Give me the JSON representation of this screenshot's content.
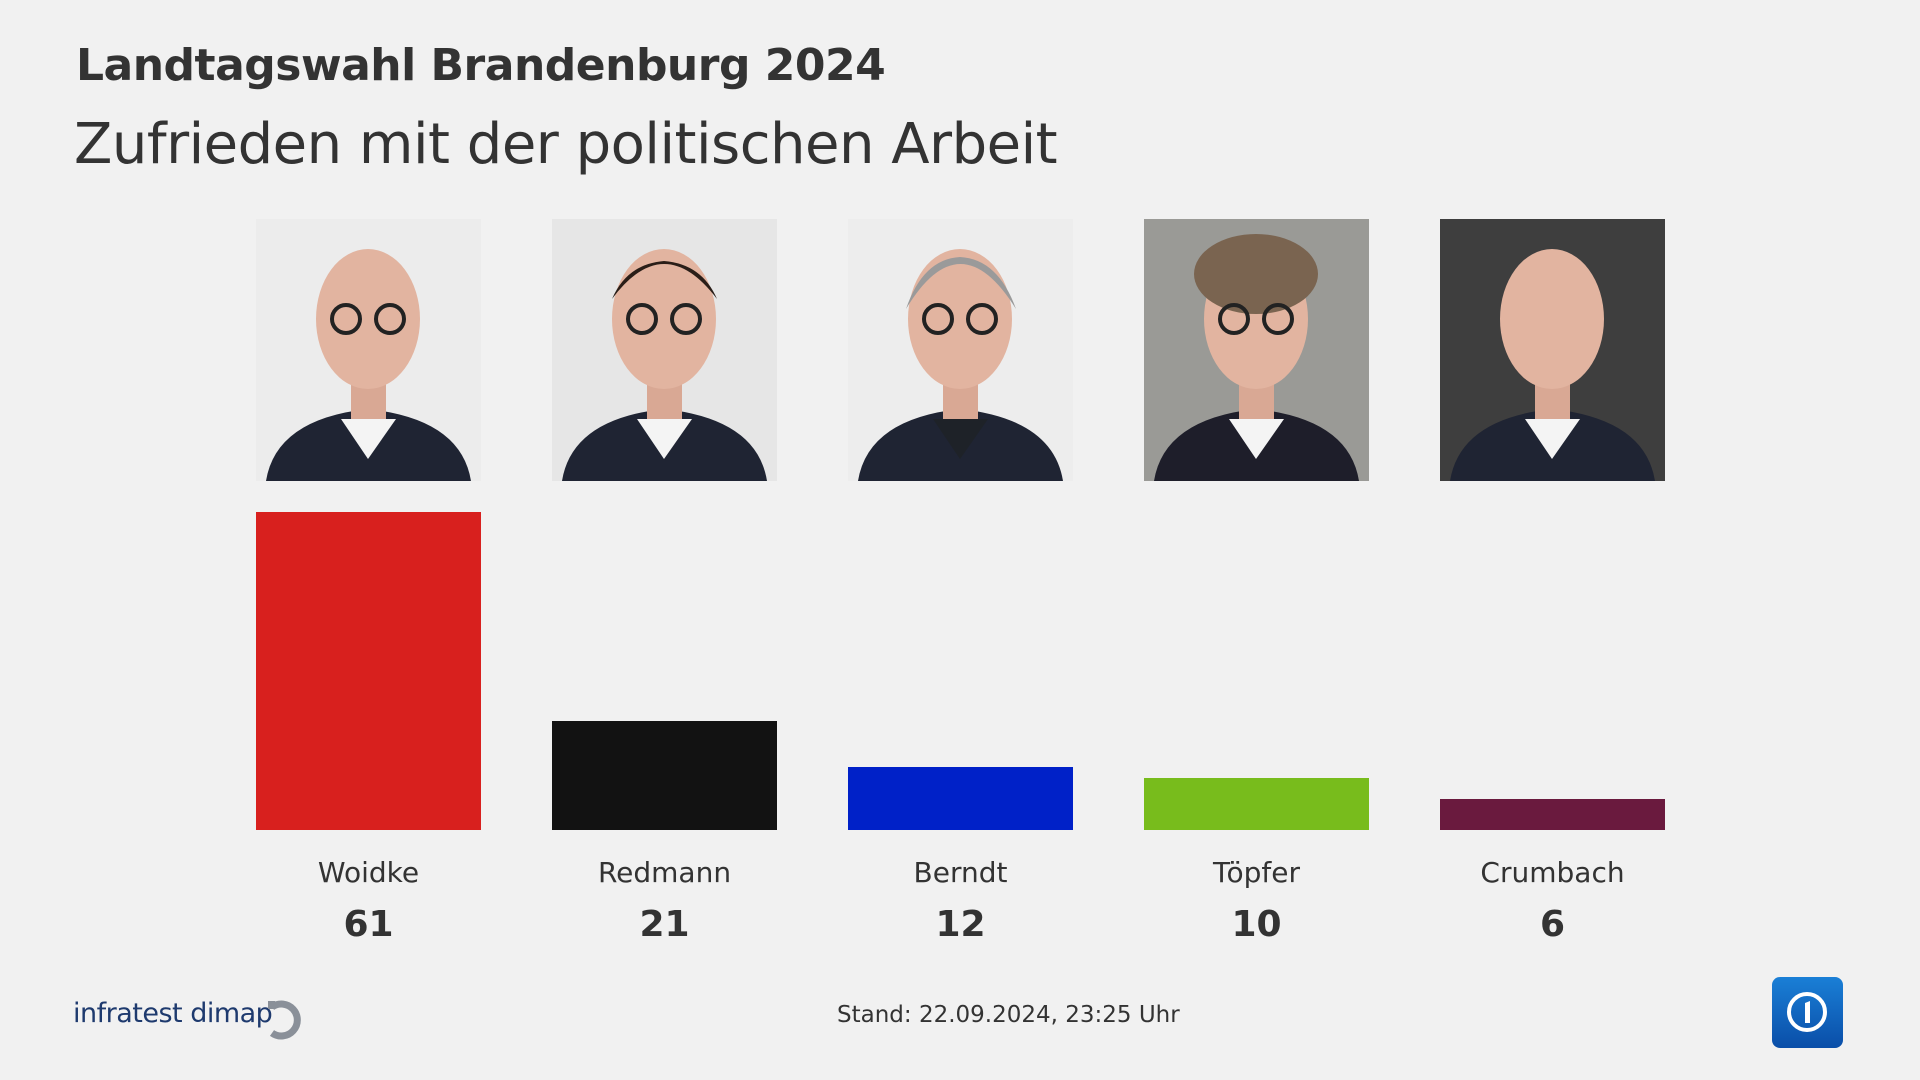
{
  "header": {
    "title": "Landtagswahl Brandenburg 2024",
    "subtitle": "Zufrieden mit der politischen Arbeit"
  },
  "chart_data": {
    "type": "bar",
    "title": "Zufrieden mit der politischen Arbeit",
    "categories": [
      "Woidke",
      "Redmann",
      "Berndt",
      "Töpfer",
      "Crumbach"
    ],
    "values": [
      61,
      21,
      12,
      10,
      6
    ],
    "value_labels": [
      "61",
      "21",
      "12",
      "10",
      "6"
    ],
    "colors": [
      "#d8201e",
      "#121212",
      "#0021c8",
      "#78bc1c",
      "#6a1a3e"
    ],
    "ylim": [
      0,
      61
    ],
    "grid": false,
    "legend": "none"
  },
  "photo_backgrounds": [
    "#ececec",
    "#e6e6e6",
    "#ededed",
    "#9a9a96",
    "#3e3e3e"
  ],
  "footer": {
    "brand": "infratest dimap",
    "stand": "Stand:  22.09.2024, 23:25 Uhr",
    "brand_icon": "infratest-dimap-logo",
    "channel_icon": "tagesschau-ard-logo"
  }
}
